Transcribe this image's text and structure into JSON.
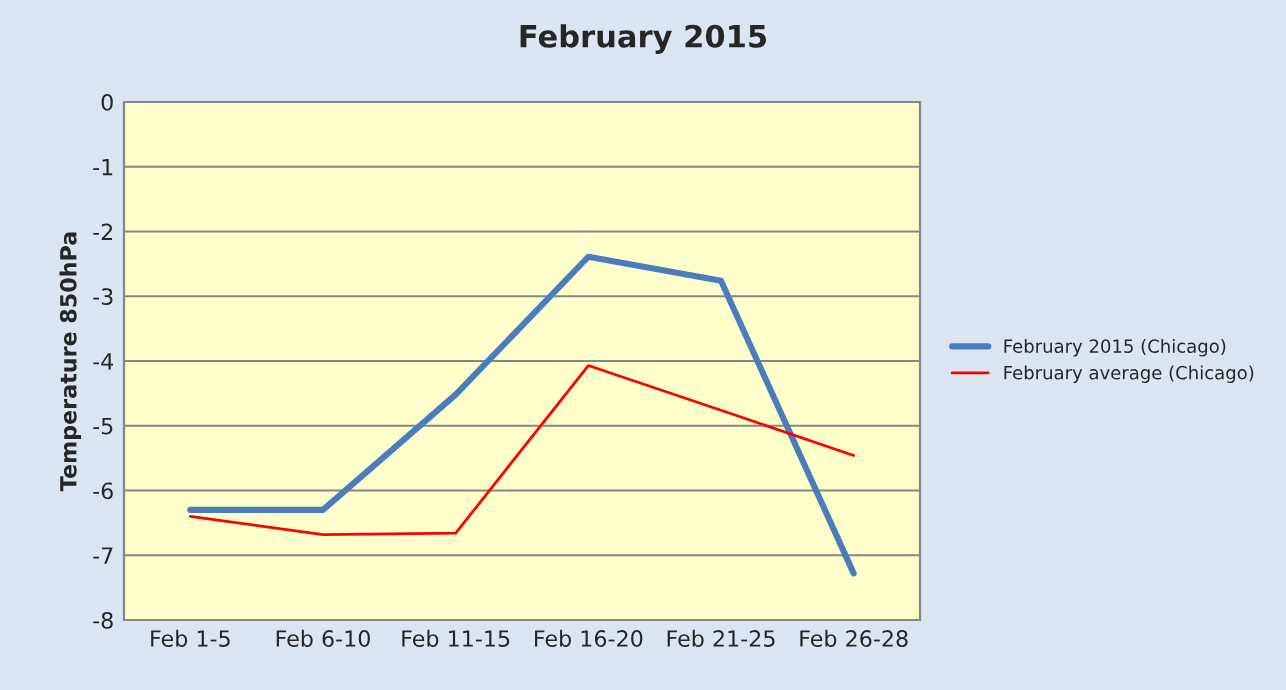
{
  "chart_data": {
    "type": "line",
    "title": "February 2015",
    "ylabel": "Temperature 850hPa",
    "categories": [
      "Feb 1-5",
      "Feb 6-10",
      "Feb 11-15",
      "Feb 16-20",
      "Feb 21-25",
      "Feb 26-28"
    ],
    "series": [
      {
        "name": "February 2015 (Chicago)",
        "color": "#4a7ebb",
        "values": [
          -6.3,
          -6.3,
          -4.52,
          -2.39,
          -2.76,
          -7.28
        ]
      },
      {
        "name": "February average (Chicago)",
        "color": "#ff0000",
        "values": [
          -6.4,
          -6.68,
          -6.66,
          -4.07,
          -4.76,
          -5.46
        ]
      }
    ],
    "ylim": [
      -8,
      0
    ],
    "yticks": [
      -8,
      -7,
      -6,
      -5,
      -4,
      -3,
      -2,
      -1,
      0
    ],
    "grid": "y",
    "legend": "right",
    "marker": "none",
    "line_style": "solid"
  }
}
